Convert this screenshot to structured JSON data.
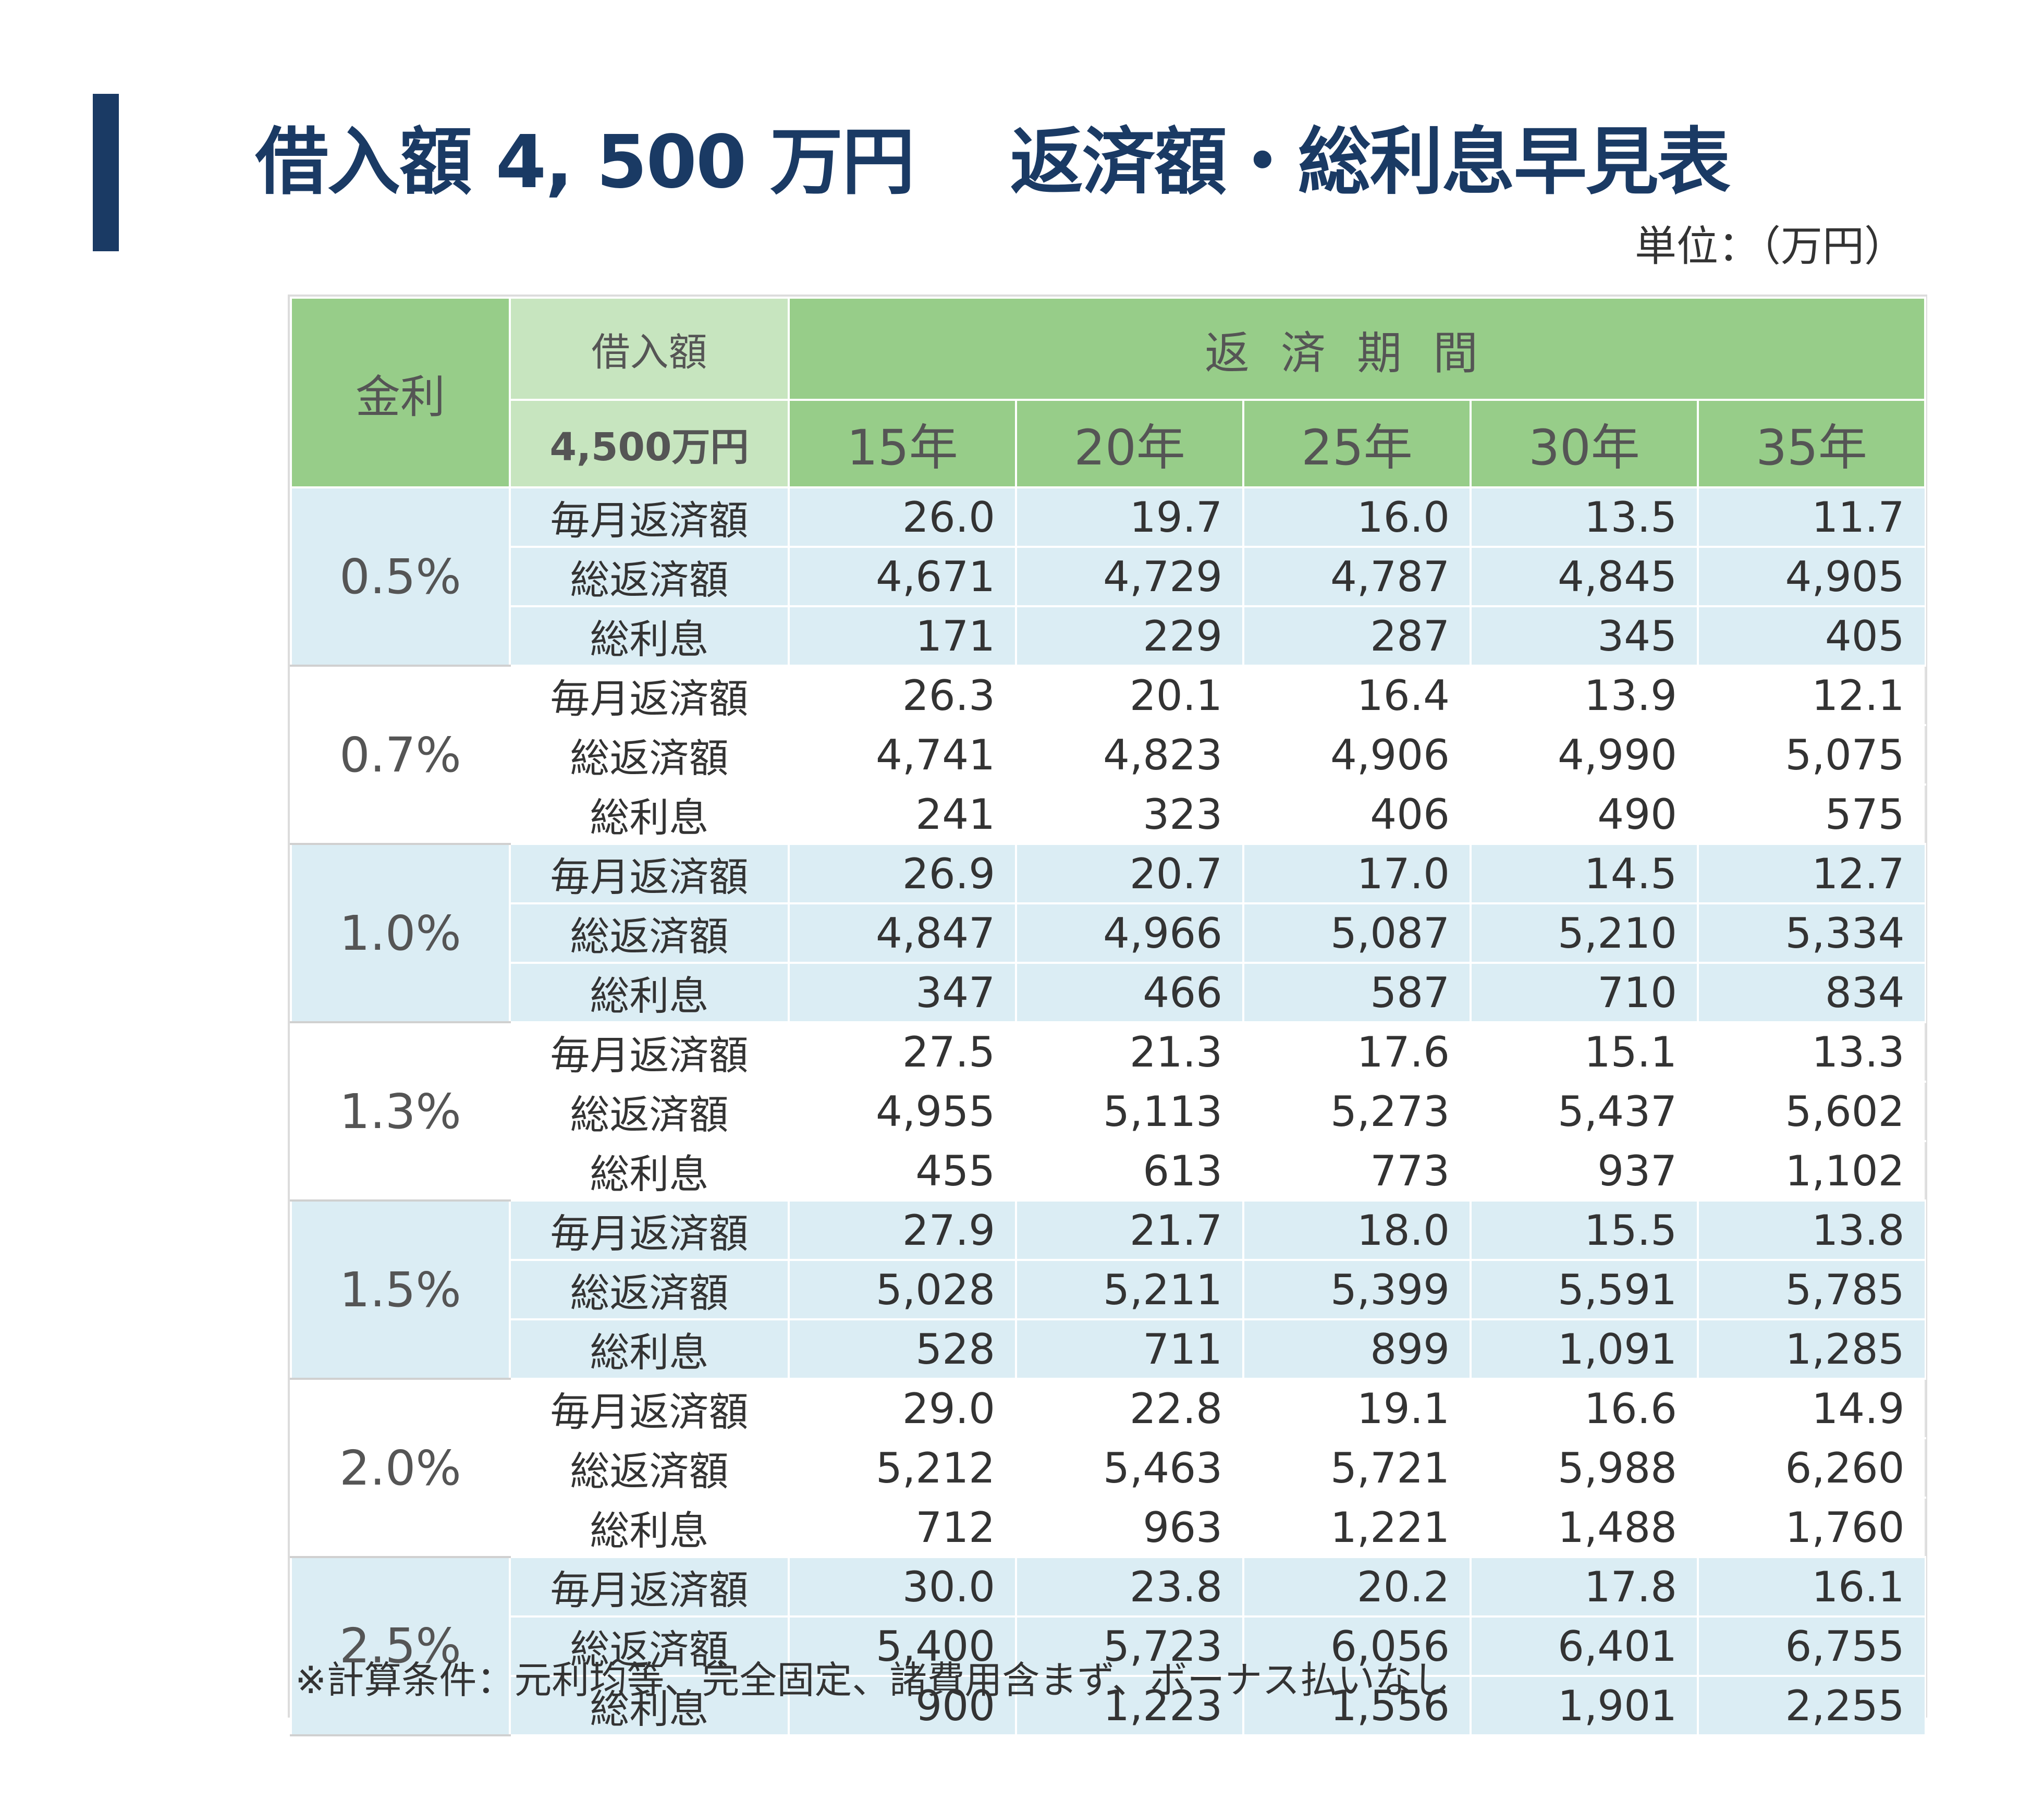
{
  "header": {
    "title": "借入額 4, 500 万円　 返済額・総利息早見表",
    "unit": "単位：（万円）"
  },
  "table": {
    "rate_header": "金利",
    "loan_header": "借入額",
    "loan_amount": "4,500万円",
    "period_header": "返済期間",
    "years": [
      "15年",
      "20年",
      "25年",
      "30年",
      "35年"
    ],
    "row_labels": [
      "毎月返済額",
      "総返済額",
      "総利息"
    ],
    "groups": [
      {
        "rate": "0.5%",
        "rows": [
          [
            "26.0",
            "19.7",
            "16.0",
            "13.5",
            "11.7"
          ],
          [
            "4,671",
            "4,729",
            "4,787",
            "4,845",
            "4,905"
          ],
          [
            "171",
            "229",
            "287",
            "345",
            "405"
          ]
        ]
      },
      {
        "rate": "0.7%",
        "rows": [
          [
            "26.3",
            "20.1",
            "16.4",
            "13.9",
            "12.1"
          ],
          [
            "4,741",
            "4,823",
            "4,906",
            "4,990",
            "5,075"
          ],
          [
            "241",
            "323",
            "406",
            "490",
            "575"
          ]
        ]
      },
      {
        "rate": "1.0%",
        "rows": [
          [
            "26.9",
            "20.7",
            "17.0",
            "14.5",
            "12.7"
          ],
          [
            "4,847",
            "4,966",
            "5,087",
            "5,210",
            "5,334"
          ],
          [
            "347",
            "466",
            "587",
            "710",
            "834"
          ]
        ]
      },
      {
        "rate": "1.3%",
        "rows": [
          [
            "27.5",
            "21.3",
            "17.6",
            "15.1",
            "13.3"
          ],
          [
            "4,955",
            "5,113",
            "5,273",
            "5,437",
            "5,602"
          ],
          [
            "455",
            "613",
            "773",
            "937",
            "1,102"
          ]
        ]
      },
      {
        "rate": "1.5%",
        "rows": [
          [
            "27.9",
            "21.7",
            "18.0",
            "15.5",
            "13.8"
          ],
          [
            "5,028",
            "5,211",
            "5,399",
            "5,591",
            "5,785"
          ],
          [
            "528",
            "711",
            "899",
            "1,091",
            "1,285"
          ]
        ]
      },
      {
        "rate": "2.0%",
        "rows": [
          [
            "29.0",
            "22.8",
            "19.1",
            "16.6",
            "14.9"
          ],
          [
            "5,212",
            "5,463",
            "5,721",
            "5,988",
            "6,260"
          ],
          [
            "712",
            "963",
            "1,221",
            "1,488",
            "1,760"
          ]
        ]
      },
      {
        "rate": "2.5%",
        "rows": [
          [
            "30.0",
            "23.8",
            "20.2",
            "17.8",
            "16.1"
          ],
          [
            "5,400",
            "5,723",
            "6,056",
            "6,401",
            "6,755"
          ],
          [
            "900",
            "1,223",
            "1,556",
            "1,901",
            "2,255"
          ]
        ]
      }
    ],
    "note": "※計算条件：元利均等、完全固定、諸費用含まず、ボーナス払いなし"
  },
  "colors": {
    "title": "#1a3a64",
    "header_green": "#97cd89",
    "header_light_green": "#c7e5bf",
    "row_blue": "#dbedf4"
  }
}
